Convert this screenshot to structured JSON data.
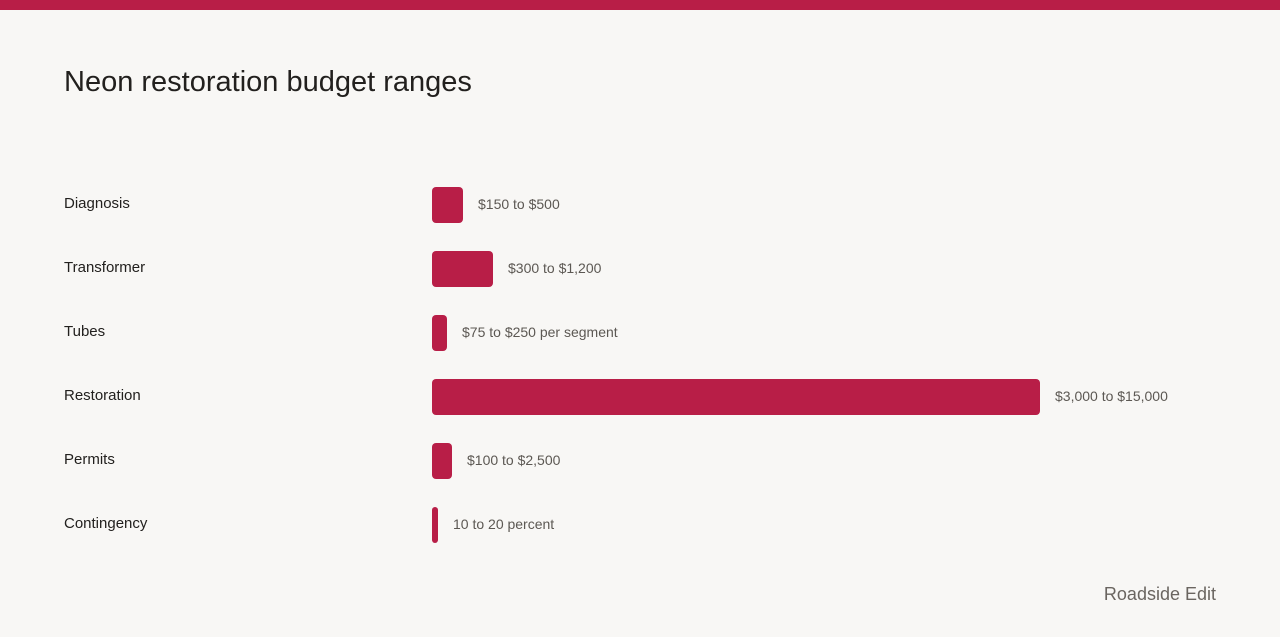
{
  "chart_data": {
    "type": "bar",
    "orientation": "horizontal",
    "title": "Neon restoration budget ranges",
    "categories": [
      "Diagnosis",
      "Transformer",
      "Tubes",
      "Restoration",
      "Permits",
      "Contingency"
    ],
    "values": [
      500,
      1200,
      250,
      15000,
      2500,
      20
    ],
    "value_labels": [
      "$150 to $500",
      "$300 to $1,200",
      "$75 to $250 per segment",
      "$3,000 to $15,000",
      "$100 to $2,500",
      "10 to 20 percent"
    ],
    "scale_max": 15000,
    "bar_color": "#b81e47",
    "grid": false
  },
  "footer": {
    "credit": "Roadside Edit"
  },
  "colors": {
    "accent": "#b81e47",
    "background": "#f8f7f5",
    "text": "#22201e"
  }
}
